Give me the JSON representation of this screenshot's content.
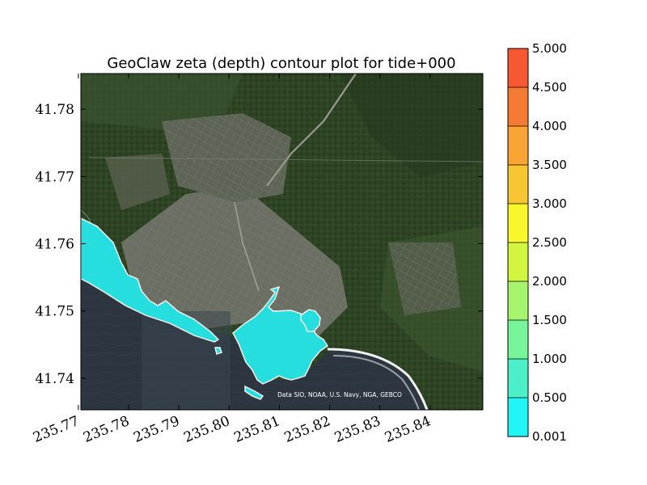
{
  "chart_data": {
    "type": "heatmap",
    "title": "GeoClaw zeta (depth) contour plot for tide+000",
    "xlabel": "",
    "ylabel": "",
    "xlim": [
      235.7705,
      235.8505
    ],
    "ylim": [
      41.7353,
      41.7853
    ],
    "x_ticks": [
      235.77,
      235.78,
      235.79,
      235.8,
      235.81,
      235.82,
      235.83,
      235.84
    ],
    "x_tick_labels": [
      "235.77",
      "235.78",
      "235.79",
      "235.80",
      "235.81",
      "235.82",
      "235.83",
      "235.84"
    ],
    "y_ticks": [
      41.74,
      41.75,
      41.76,
      41.77,
      41.78
    ],
    "y_tick_labels": [
      "41.74",
      "41.75",
      "41.76",
      "41.77",
      "41.78"
    ],
    "background": "satellite imagery of coastline with town (Crescent City area)",
    "attribution": "Data SIO, NOAA, U.S. Navy, NGA, GEBCO",
    "flooded_region_color": "#27dede",
    "flooded_region_depth_range": [
      0.001,
      0.5
    ],
    "colorbar": {
      "levels": [
        0.001,
        0.5,
        1.0,
        1.5,
        2.0,
        2.5,
        3.0,
        3.5,
        4.0,
        4.5,
        5.0
      ],
      "tick_labels": [
        "0.001",
        "0.500",
        "1.000",
        "1.500",
        "2.000",
        "2.500",
        "3.000",
        "3.500",
        "4.000",
        "4.500",
        "5.000"
      ],
      "colors": [
        "#22f5f5",
        "#4cf0c8",
        "#78f59a",
        "#a6f46d",
        "#d2f540",
        "#f7f72c",
        "#f8c533",
        "#f8a533",
        "#f57a33",
        "#f55833"
      ]
    }
  }
}
